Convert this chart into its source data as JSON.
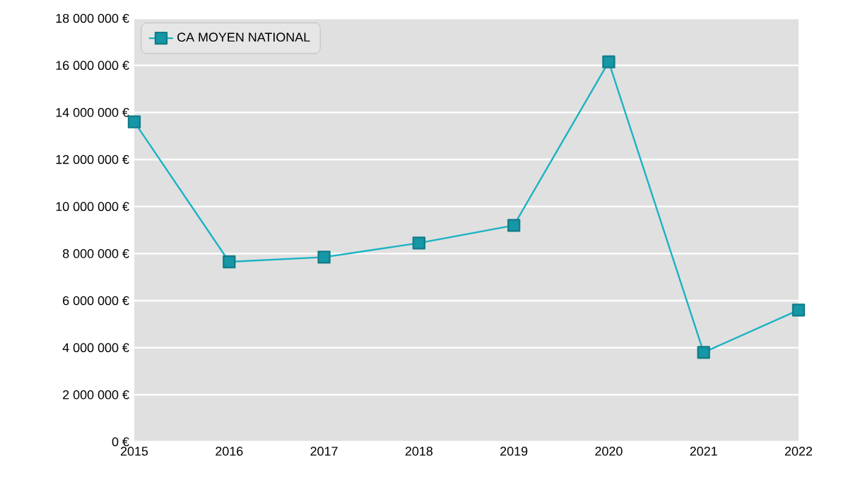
{
  "chart_data": {
    "type": "line",
    "categories": [
      "2015",
      "2016",
      "2017",
      "2018",
      "2019",
      "2020",
      "2021",
      "2022"
    ],
    "series": [
      {
        "name": "CA MOYEN NATIONAL",
        "color": "#1ab2c4",
        "values": [
          13600000,
          7650000,
          7850000,
          8450000,
          9200000,
          16150000,
          3800000,
          5600000
        ]
      }
    ],
    "ylim": [
      0,
      18000000
    ],
    "yticks": [
      {
        "value": 0,
        "label": "0 €"
      },
      {
        "value": 2000000,
        "label": "2 000 000 €"
      },
      {
        "value": 4000000,
        "label": "4 000 000 €"
      },
      {
        "value": 6000000,
        "label": "6 000 000 €"
      },
      {
        "value": 8000000,
        "label": "8 000 000 €"
      },
      {
        "value": 10000000,
        "label": "10 000 000 €"
      },
      {
        "value": 12000000,
        "label": "12 000 000 €"
      },
      {
        "value": 14000000,
        "label": "14 000 000 €"
      },
      {
        "value": 16000000,
        "label": "16 000 000 €"
      },
      {
        "value": 18000000,
        "label": "18 000 000 €"
      }
    ],
    "grid": "y",
    "legend": "top left",
    "marker": "square",
    "line_style": "solid"
  }
}
